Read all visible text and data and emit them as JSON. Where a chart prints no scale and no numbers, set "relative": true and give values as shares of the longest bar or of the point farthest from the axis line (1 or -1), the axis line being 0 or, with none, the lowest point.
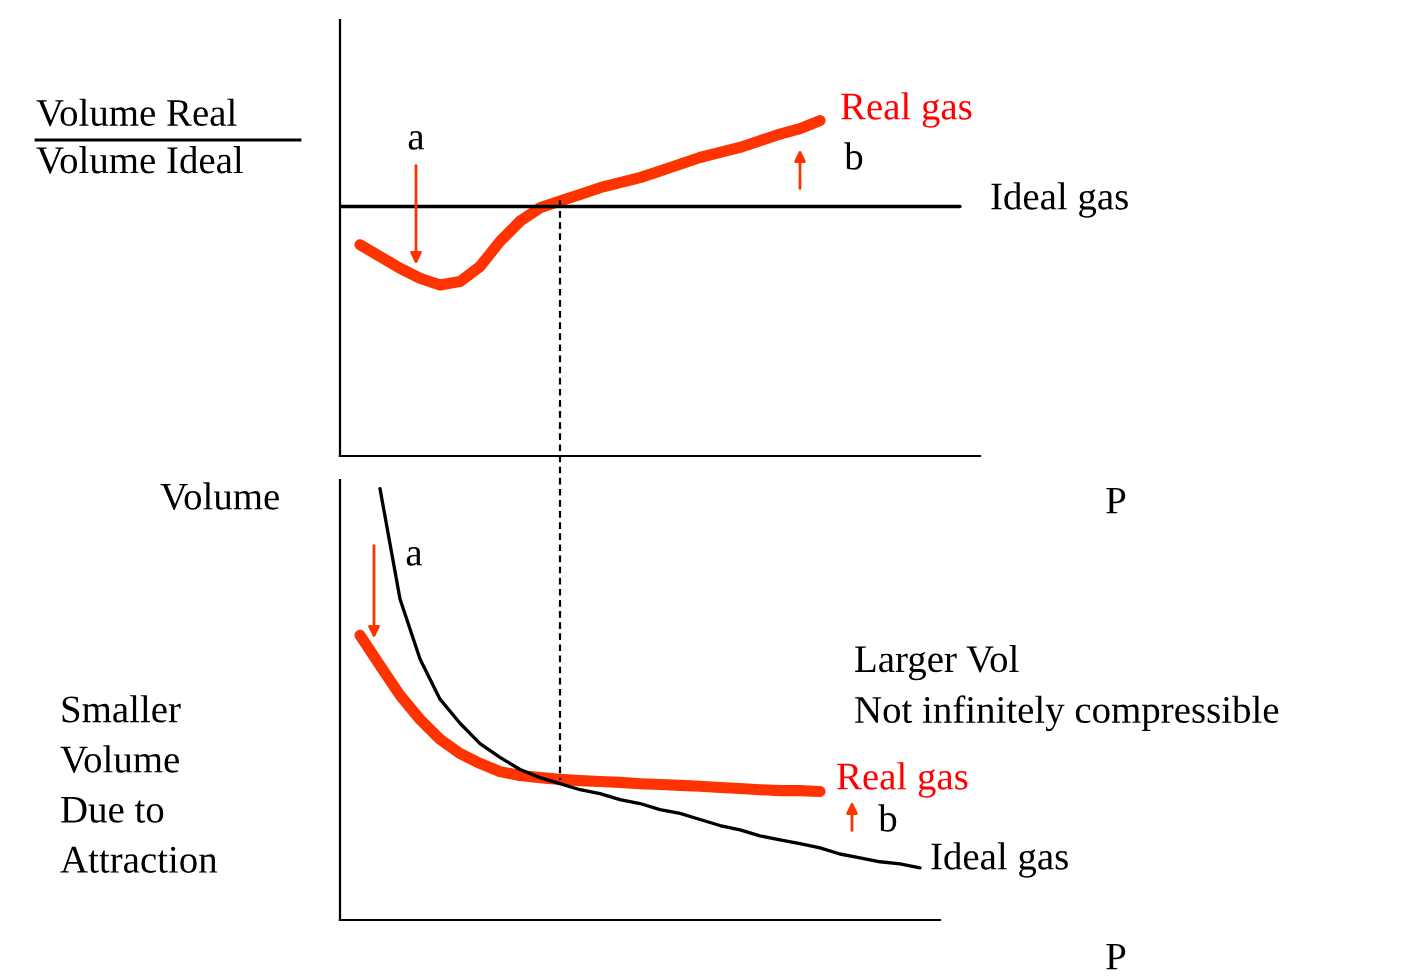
{
  "chart_data": [
    {
      "type": "line",
      "relative": true,
      "ylabel": "Volume Real\nVolume Ideal",
      "xlabel": "P",
      "categories": [
        null,
        null,
        null,
        null,
        null,
        null,
        null,
        null,
        null,
        null,
        null,
        null,
        null,
        null,
        null,
        null,
        null,
        null,
        null,
        null,
        null,
        null,
        null,
        null,
        null,
        null,
        null,
        null,
        null,
        null,
        null,
        null,
        null
      ],
      "series": [
        {
          "name": "Real gas",
          "color": "#ff3300",
          "values": [
            null,
            0.63,
            0.595,
            0.56,
            0.53,
            0.51,
            0.52,
            0.565,
            0.64,
            0.7,
            0.74,
            0.76,
            0.78,
            0.8,
            0.815,
            0.83,
            0.85,
            0.87,
            0.89,
            0.905,
            0.92,
            0.94,
            0.96,
            0.976,
            1.0,
            null,
            null,
            null,
            null,
            null,
            null,
            null,
            null
          ]
        },
        {
          "name": "Ideal gas",
          "color": "#000000",
          "values": [
            0.744,
            0.744,
            0.744,
            0.744,
            0.744,
            0.744,
            0.744,
            0.744,
            0.744,
            0.744,
            0.744,
            0.744,
            0.744,
            0.744,
            0.744,
            0.744,
            0.744,
            0.744,
            0.744,
            0.744,
            0.744,
            0.744,
            0.744,
            0.744,
            0.744,
            0.744,
            0.744,
            0.744,
            0.744,
            0.744,
            0.744,
            0.744,
            null
          ]
        }
      ],
      "annotations": [
        "a",
        "b"
      ]
    },
    {
      "type": "line",
      "relative": true,
      "ylabel": "Volume",
      "xlabel": "P",
      "categories": [
        null,
        null,
        null,
        null,
        null,
        null,
        null,
        null,
        null,
        null,
        null,
        null,
        null,
        null,
        null,
        null,
        null,
        null,
        null,
        null,
        null,
        null,
        null,
        null,
        null,
        null,
        null,
        null,
        null,
        null
      ],
      "series": [
        {
          "name": "Real gas",
          "color": "#ff3300",
          "values": [
            null,
            0.66,
            0.59,
            0.521,
            0.465,
            0.419,
            0.386,
            0.363,
            0.344,
            0.335,
            0.33,
            0.326,
            0.323,
            0.321,
            0.319,
            0.316,
            0.314,
            0.312,
            0.31,
            0.307,
            0.305,
            0.302,
            0.3,
            0.3,
            0.298,
            null,
            null,
            null,
            null,
            null
          ]
        },
        {
          "name": "Ideal gas",
          "color": "#000000",
          "values": [
            null,
            null,
            1.0,
            0.744,
            0.605,
            0.512,
            0.456,
            0.409,
            0.377,
            0.349,
            0.33,
            0.316,
            0.302,
            0.293,
            0.279,
            0.27,
            0.256,
            0.247,
            0.233,
            0.219,
            0.209,
            0.195,
            0.186,
            0.177,
            0.167,
            0.153,
            0.144,
            0.135,
            0.13,
            0.121
          ]
        }
      ],
      "annotations": [
        "a",
        "b",
        "Larger Vol\nNot infinitely compressible",
        "Smaller\nVolume\nDue to\nAttraction"
      ]
    }
  ]
}
